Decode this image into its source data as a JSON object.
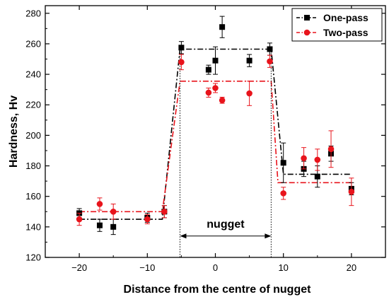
{
  "chart_data": {
    "type": "scatter",
    "xlabel": "Distance from the centre of nugget",
    "ylabel": "Hardness, Hv",
    "xlim": [
      -25,
      25
    ],
    "ylim": [
      120,
      285
    ],
    "x_ticks": [
      -20,
      -10,
      0,
      10,
      20
    ],
    "y_ticks": [
      120,
      140,
      160,
      180,
      200,
      220,
      240,
      260,
      280
    ],
    "grid": false,
    "legend_position": "top-right",
    "series": [
      {
        "name": "One-pass",
        "color": "#000000",
        "marker": "square",
        "points": [
          {
            "x": -20,
            "y": 149,
            "err": 3
          },
          {
            "x": -17,
            "y": 141,
            "err": 4
          },
          {
            "x": -15,
            "y": 140,
            "err": 5
          },
          {
            "x": -10,
            "y": 146,
            "err": 3
          },
          {
            "x": -7.5,
            "y": 150,
            "err": 4
          },
          {
            "x": -5,
            "y": 257.5,
            "err": 4
          },
          {
            "x": -1,
            "y": 243,
            "err": 3
          },
          {
            "x": 0,
            "y": 249,
            "err": 9
          },
          {
            "x": 1,
            "y": 271,
            "err": 7
          },
          {
            "x": 5,
            "y": 249,
            "err": 4
          },
          {
            "x": 8,
            "y": 256.5,
            "err": 4
          },
          {
            "x": 10,
            "y": 182,
            "err": 13
          },
          {
            "x": 13,
            "y": 178,
            "err": 5
          },
          {
            "x": 15,
            "y": 173,
            "err": 7
          },
          {
            "x": 17,
            "y": 188,
            "err": 5
          },
          {
            "x": 20,
            "y": 165,
            "err": 4
          }
        ],
        "fit_line": [
          [
            -20,
            145
          ],
          [
            -7.8,
            145
          ],
          [
            -5.2,
            256.5
          ],
          [
            8.2,
            256.5
          ],
          [
            10,
            174.5
          ],
          [
            20,
            174.5
          ]
        ]
      },
      {
        "name": "Two-pass",
        "color": "#e8141c",
        "marker": "circle",
        "points": [
          {
            "x": -20,
            "y": 145,
            "err": 4
          },
          {
            "x": -17,
            "y": 155,
            "err": 4
          },
          {
            "x": -15,
            "y": 150,
            "err": 5
          },
          {
            "x": -10,
            "y": 145,
            "err": 3
          },
          {
            "x": -7.5,
            "y": 150,
            "err": 4
          },
          {
            "x": -5,
            "y": 248,
            "err": 5
          },
          {
            "x": -1,
            "y": 228,
            "err": 3
          },
          {
            "x": 0,
            "y": 231,
            "err": 3
          },
          {
            "x": 1,
            "y": 223,
            "err": 2
          },
          {
            "x": 5,
            "y": 227.5,
            "err": 8
          },
          {
            "x": 8,
            "y": 248.5,
            "err": 4
          },
          {
            "x": 10,
            "y": 162,
            "err": 4
          },
          {
            "x": 13,
            "y": 185,
            "err": 7
          },
          {
            "x": 15,
            "y": 184,
            "err": 7
          },
          {
            "x": 17,
            "y": 191,
            "err": 12
          },
          {
            "x": 20,
            "y": 163,
            "err": 9
          }
        ],
        "fit_line": [
          [
            -20,
            150
          ],
          [
            -7.8,
            150
          ],
          [
            -5.2,
            235.5
          ],
          [
            8.2,
            235.5
          ],
          [
            9.2,
            169
          ],
          [
            20,
            169
          ]
        ]
      }
    ],
    "annotations": [
      {
        "text": "nugget",
        "x": 1.5,
        "y": 139.5
      }
    ],
    "nugget_bounds": [
      -5.2,
      8.2
    ],
    "nugget_arrow_y": 134
  }
}
